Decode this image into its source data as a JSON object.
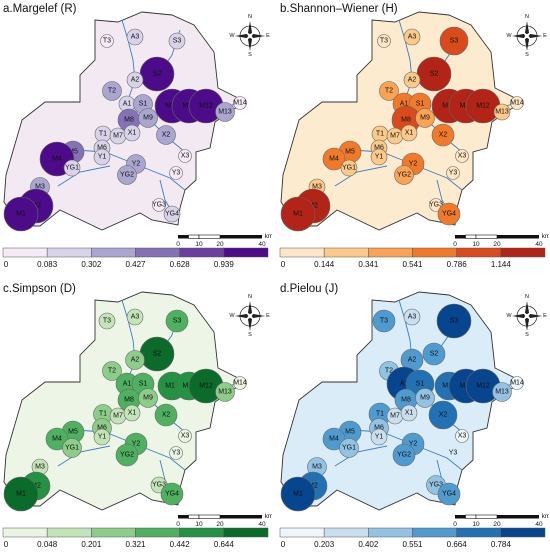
{
  "panels": [
    {
      "title": "a.Margelef  (R)",
      "colors": [
        "#f5eaf5",
        "#d8d3e8",
        "#aaa6d0",
        "#8572b6",
        "#6a3fa0",
        "#4c0b88"
      ],
      "breaks": [
        "0",
        "0.083",
        "0.302",
        "0.427",
        "0.628",
        "0.939"
      ],
      "bg": "#f3e9f3",
      "classes": {
        "A1": 1,
        "A2": 1,
        "A3": 1,
        "S1": 2,
        "S2": 5,
        "S3": 1,
        "T1": 1,
        "T2": 2,
        "T3": 0,
        "M1": 5,
        "M2": 5,
        "M3": 2,
        "M4": 5,
        "M5": 3,
        "M6": 1,
        "M7": 1,
        "M8": 3,
        "M9": 2,
        "M10": 5,
        "M11": 5,
        "M12": 5,
        "M13": 2,
        "M14": 0,
        "X1": 1,
        "X2": 2,
        "X3": 0,
        "Y1": 1,
        "Y2": 2,
        "Y3": 0,
        "YG1": 1,
        "YG2": 2,
        "YG3": 0,
        "YG4": 1
      }
    },
    {
      "title": "b.Shannon–Wiener  (H)",
      "colors": [
        "#fde6c4",
        "#fbc98a",
        "#f9a354",
        "#f07a2a",
        "#d94a1c",
        "#b22418"
      ],
      "breaks": [
        "0",
        "0.144",
        "0.341",
        "0.541",
        "0.786",
        "1.144"
      ],
      "bg": "#fdebd0",
      "classes": {
        "A1": 3,
        "A2": 1,
        "A3": 1,
        "S1": 3,
        "S2": 5,
        "S3": 4,
        "T1": 1,
        "T2": 2,
        "T3": 0,
        "M1": 5,
        "M2": 5,
        "M3": 1,
        "M4": 3,
        "M5": 3,
        "M6": 1,
        "M7": 1,
        "M8": 4,
        "M9": 2,
        "M10": 5,
        "M11": 5,
        "M12": 5,
        "M13": 1,
        "M14": 0,
        "X1": 1,
        "X2": 3,
        "X3": 0,
        "Y1": 1,
        "Y2": 3,
        "Y3": 0,
        "YG1": 1,
        "YG2": 2,
        "YG3": 0,
        "YG4": 3
      }
    },
    {
      "title": "c.Simpson (D)",
      "colors": [
        "#eaf4e2",
        "#c3e4b8",
        "#8dcd8a",
        "#4fb061",
        "#239243",
        "#0a6b2b"
      ],
      "breaks": [
        "0",
        "0.048",
        "0.201",
        "0.321",
        "0.442",
        "0.644"
      ],
      "bg": "#edf5e6",
      "classes": {
        "A1": 3,
        "A2": 2,
        "A3": 1,
        "S1": 3,
        "S2": 5,
        "S3": 3,
        "T1": 2,
        "T2": 2,
        "T3": 1,
        "M1": 5,
        "M2": 4,
        "M3": 1,
        "M4": 3,
        "M5": 3,
        "M6": 2,
        "M7": 1,
        "M8": 3,
        "M9": 2,
        "M10": 4,
        "M11": 4,
        "M12": 5,
        "M13": 2,
        "M14": 0,
        "X1": 1,
        "X2": 3,
        "X3": 0,
        "Y1": 1,
        "Y2": 3,
        "Y3": 0,
        "YG1": 2,
        "YG2": 3,
        "YG3": 1,
        "YG4": 3
      }
    },
    {
      "title": "d.Pielou (J)",
      "colors": [
        "#eef5fb",
        "#c9dff0",
        "#93c3e2",
        "#4f9bd0",
        "#2271b5",
        "#08458f"
      ],
      "breaks": [
        "0",
        "0.203",
        "0.402",
        "0.551",
        "0.664",
        "0.784"
      ],
      "bg": "#d9ecf8",
      "classes": {
        "A1": 5,
        "A2": 3,
        "A3": 1,
        "S1": 4,
        "S2": 3,
        "S3": 5,
        "T1": 3,
        "T2": 2,
        "T3": 3,
        "M1": 5,
        "M2": 4,
        "M3": 2,
        "M4": 3,
        "M5": 3,
        "M6": 2,
        "M7": 1,
        "M8": 3,
        "M9": 2,
        "M10": 4,
        "M11": 5,
        "M12": 5,
        "M13": 2,
        "M14": 0,
        "X1": 1,
        "X2": 4,
        "X3": 0,
        "Y1": 1,
        "Y2": 3,
        "Y3": -1,
        "YG1": 2,
        "YG2": 3,
        "YG3": 2,
        "YG4": 3
      }
    }
  ],
  "sites": [
    "T3",
    "A3",
    "S3",
    "S2",
    "A2",
    "T2",
    "A1",
    "S1",
    "M10",
    "M11",
    "M12",
    "M14",
    "M13",
    "M8",
    "M9",
    "T1",
    "M7",
    "X1",
    "X2",
    "M6",
    "M5",
    "M4",
    "Y1",
    "YG1",
    "Y2",
    "X3",
    "YG2",
    "Y3",
    "M3",
    "M2",
    "M1",
    "YG3",
    "YG4"
  ],
  "scalebar": {
    "labels": [
      "0",
      "10",
      "20",
      "40"
    ],
    "unit": "km"
  },
  "compass": {
    "n": "N",
    "s": "S",
    "e": "E",
    "w": "W"
  }
}
